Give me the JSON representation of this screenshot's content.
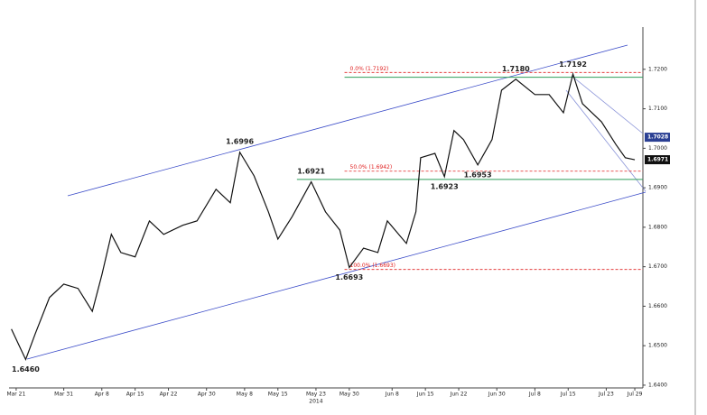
{
  "chart_data": {
    "type": "line",
    "x": [
      -1,
      2,
      4,
      7,
      10,
      13,
      16,
      18,
      20,
      22,
      25,
      28,
      31,
      35,
      38,
      42,
      45,
      47,
      50,
      53,
      55,
      58,
      62,
      65,
      68,
      70,
      73,
      76,
      78,
      82,
      84,
      85,
      88,
      90,
      92,
      94,
      97,
      100,
      102,
      105,
      109,
      112,
      115,
      117,
      119,
      123,
      126,
      128,
      130
    ],
    "series": [
      {
        "color": "#111111",
        "values": [
          1.6542,
          1.6465,
          1.653,
          1.6622,
          1.6656,
          1.6645,
          1.6587,
          1.6679,
          1.6782,
          1.6736,
          1.6725,
          1.6816,
          1.6782,
          1.6805,
          1.6816,
          1.6896,
          1.6862,
          1.699,
          1.693,
          1.6839,
          1.677,
          1.6827,
          1.6915,
          1.6839,
          1.6793,
          1.6698,
          1.6747,
          1.6736,
          1.6816,
          1.6759,
          1.6839,
          1.6976,
          1.6987,
          1.6928,
          1.7045,
          1.7022,
          1.6958,
          1.7022,
          1.7147,
          1.7175,
          1.7136,
          1.7136,
          1.709,
          1.7188,
          1.7113,
          1.7067,
          1.701,
          1.6976,
          1.6971
        ]
      }
    ],
    "xlim": [
      -1.5,
      131.7
    ],
    "xticks": [
      {
        "value": 0,
        "label": "Mar 21"
      },
      {
        "value": 10,
        "label": "Mar 31"
      },
      {
        "value": 18,
        "label": "Apr 8"
      },
      {
        "value": 25,
        "label": "Apr 15"
      },
      {
        "value": 32,
        "label": "Apr 22"
      },
      {
        "value": 40,
        "label": "Apr 30"
      },
      {
        "value": 48,
        "label": "May 8"
      },
      {
        "value": 55,
        "label": "May 15"
      },
      {
        "value": 63,
        "label": "May 23"
      },
      {
        "value": 70,
        "label": "May 30"
      },
      {
        "value": 79,
        "label": "Jun 8"
      },
      {
        "value": 86,
        "label": "Jun 15"
      },
      {
        "value": 93,
        "label": "Jun 22"
      },
      {
        "value": 101,
        "label": "Jun 30"
      },
      {
        "value": 109,
        "label": "Jul 8"
      },
      {
        "value": 116,
        "label": "Jul 15"
      },
      {
        "value": 124,
        "label": "Jul 23"
      },
      {
        "value": 130,
        "label": "Jul 29"
      }
    ],
    "year_label": "2014",
    "ylim": [
      1.6393,
      1.7307
    ],
    "yticks": [
      {
        "value": 1.64,
        "label": "1.6400"
      },
      {
        "value": 1.65,
        "label": "1.6500"
      },
      {
        "value": 1.66,
        "label": "1.6600"
      },
      {
        "value": 1.67,
        "label": "1.6700"
      },
      {
        "value": 1.68,
        "label": "1.6800"
      },
      {
        "value": 1.69,
        "label": "1.6900"
      },
      {
        "value": 1.7,
        "label": "1.7000"
      },
      {
        "value": 1.71,
        "label": "1.7100"
      },
      {
        "value": 1.72,
        "label": "1.7200"
      }
    ],
    "annotations": [
      {
        "label": "1.6460",
        "x": 2,
        "value": 1.646,
        "pos": "below"
      },
      {
        "label": "1.6996",
        "x": 47,
        "value": 1.6996,
        "pos": "above"
      },
      {
        "label": "1.6921",
        "x": 62,
        "value": 1.6921,
        "pos": "above"
      },
      {
        "label": "1.6693",
        "x": 70,
        "value": 1.6693,
        "pos": "below"
      },
      {
        "label": "1.6923",
        "x": 90,
        "value": 1.6923,
        "pos": "below"
      },
      {
        "label": "1.6953",
        "x": 97,
        "value": 1.6953,
        "pos": "below"
      },
      {
        "label": "1.7180",
        "x": 105,
        "value": 1.718,
        "pos": "above"
      },
      {
        "label": "1.7192",
        "x": 117,
        "value": 1.7192,
        "pos": "above"
      }
    ],
    "support_lines": [
      {
        "value": 1.718,
        "x": 69,
        "color": "#2e9e5a"
      },
      {
        "value": 1.6921,
        "x": 59,
        "color": "#2e9e5a"
      }
    ],
    "fib_levels": [
      {
        "label": "0.0% (1.7192)",
        "value": 1.7192
      },
      {
        "label": "50.0% (1.6942)",
        "value": 1.6942
      },
      {
        "label": "100.0% (1.6693)",
        "value": 1.6693
      }
    ],
    "fib_color": "#e02020",
    "fib_start": 69,
    "price_tags": [
      {
        "label": "1.7028",
        "value": 1.7028,
        "color": "#2a3f93"
      },
      {
        "label": "1.6971",
        "value": 1.6971,
        "color": "#111111"
      }
    ]
  }
}
